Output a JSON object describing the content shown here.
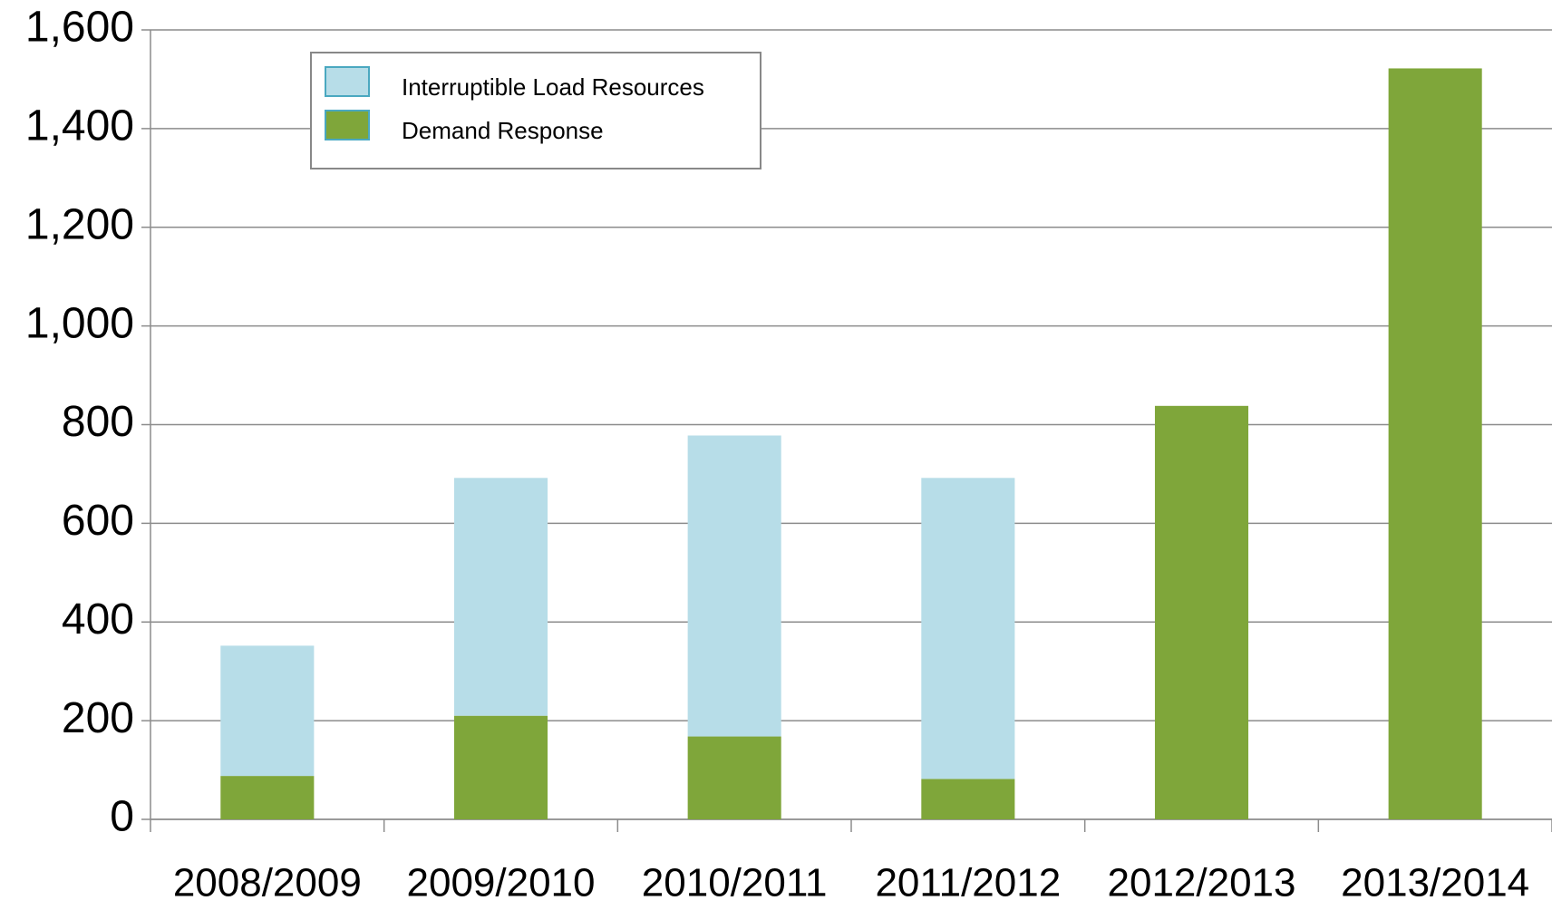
{
  "chart_data": {
    "type": "stacked_bar",
    "categories": [
      "2008/2009",
      "2009/2010",
      "2010/2011",
      "2011/2012",
      "2012/2013",
      "2013/2014"
    ],
    "series": [
      {
        "name": "Demand Response",
        "color": "#7fa63a",
        "values": [
          88,
          210,
          168,
          82,
          838,
          1522
        ]
      },
      {
        "name": "Interruptible Load Resources",
        "color": "#b7dde8",
        "values": [
          264,
          482,
          610,
          610,
          0,
          0
        ]
      }
    ],
    "legend_order": [
      1,
      0
    ],
    "ylim": [
      0,
      1600
    ],
    "yticks": [
      0,
      200,
      400,
      600,
      800,
      {
        "value": 1000,
        "label": "1,000"
      },
      {
        "value": 1200,
        "label": "1,200"
      },
      {
        "value": 1400,
        "label": "1,400"
      },
      {
        "value": 1600,
        "label": "1,600"
      }
    ],
    "grid": true,
    "legend": "upper left"
  }
}
